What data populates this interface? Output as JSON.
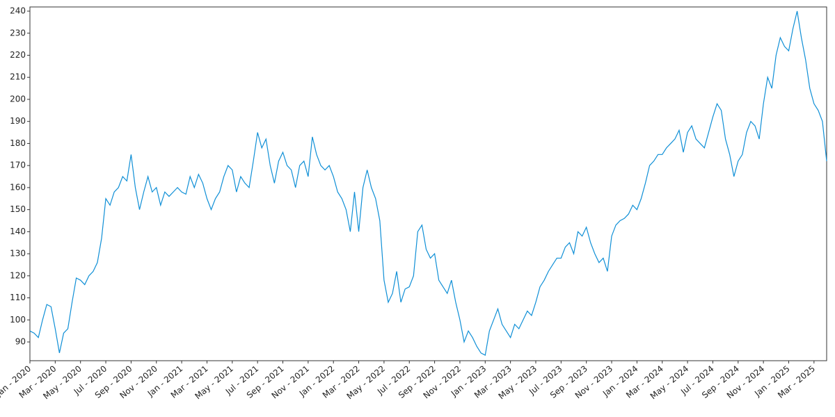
{
  "chart_data": {
    "type": "line",
    "series": [
      {
        "color": "#0f8fd6",
        "values": [
          95,
          94,
          92,
          100,
          107,
          106,
          96,
          85,
          94,
          96,
          108,
          119,
          118,
          116,
          120,
          122,
          126,
          137,
          155,
          152,
          158,
          160,
          165,
          163,
          175,
          160,
          150,
          158,
          165,
          158,
          160,
          152,
          158,
          156,
          158,
          160,
          158,
          157,
          165,
          160,
          166,
          162,
          155,
          150,
          155,
          158,
          165,
          170,
          168,
          158,
          165,
          162,
          160,
          172,
          185,
          178,
          182,
          170,
          162,
          172,
          176,
          170,
          168,
          160,
          170,
          172,
          165,
          183,
          175,
          170,
          168,
          170,
          165,
          158,
          155,
          150,
          140,
          158,
          140,
          160,
          168,
          160,
          155,
          145,
          118,
          108,
          112,
          122,
          108,
          114,
          115,
          120,
          140,
          143,
          132,
          128,
          130,
          118,
          115,
          112,
          118,
          108,
          100,
          90,
          95,
          92,
          88,
          85,
          84,
          95,
          100,
          105,
          98,
          95,
          92,
          98,
          96,
          100,
          104,
          102,
          108,
          115,
          118,
          122,
          125,
          128,
          128,
          133,
          135,
          130,
          140,
          138,
          142,
          135,
          130,
          126,
          128,
          122,
          138,
          143,
          145,
          146,
          148,
          152,
          150,
          155,
          162,
          170,
          172,
          175,
          175,
          178,
          180,
          182,
          186,
          176,
          185,
          188,
          182,
          180,
          178,
          185,
          192,
          198,
          195,
          182,
          175,
          165,
          172,
          175,
          185,
          190,
          188,
          182,
          198,
          210,
          205,
          220,
          228,
          224,
          222,
          232,
          240,
          228,
          218,
          205,
          198,
          195,
          190,
          172
        ]
      }
    ],
    "xlim": [
      0,
      189
    ],
    "xticks": [
      {
        "value": 0,
        "label": "Jan - 2020"
      },
      {
        "value": 6,
        "label": "Mar - 2020"
      },
      {
        "value": 12,
        "label": "May - 2020"
      },
      {
        "value": 18,
        "label": "Jul - 2020"
      },
      {
        "value": 24,
        "label": "Sep - 2020"
      },
      {
        "value": 30,
        "label": "Nov - 2020"
      },
      {
        "value": 36,
        "label": "Jan - 2021"
      },
      {
        "value": 42,
        "label": "Mar - 2021"
      },
      {
        "value": 48,
        "label": "May - 2021"
      },
      {
        "value": 54,
        "label": "Jul - 2021"
      },
      {
        "value": 60,
        "label": "Sep - 2021"
      },
      {
        "value": 66,
        "label": "Nov - 2021"
      },
      {
        "value": 72,
        "label": "Jan - 2022"
      },
      {
        "value": 78,
        "label": "Mar - 2022"
      },
      {
        "value": 84,
        "label": "May - 2022"
      },
      {
        "value": 90,
        "label": "Jul - 2022"
      },
      {
        "value": 96,
        "label": "Sep - 2022"
      },
      {
        "value": 102,
        "label": "Nov - 2022"
      },
      {
        "value": 108,
        "label": "Jan - 2023"
      },
      {
        "value": 114,
        "label": "Mar - 2023"
      },
      {
        "value": 120,
        "label": "May - 2023"
      },
      {
        "value": 126,
        "label": "Jul - 2023"
      },
      {
        "value": 132,
        "label": "Sep - 2023"
      },
      {
        "value": 138,
        "label": "Nov - 2023"
      },
      {
        "value": 144,
        "label": "Jan - 2024"
      },
      {
        "value": 150,
        "label": "Mar - 2024"
      },
      {
        "value": 156,
        "label": "May - 2024"
      },
      {
        "value": 162,
        "label": "Jul - 2024"
      },
      {
        "value": 168,
        "label": "Sep - 2024"
      },
      {
        "value": 174,
        "label": "Nov - 2024"
      },
      {
        "value": 180,
        "label": "Jan - 2025"
      },
      {
        "value": 186,
        "label": "Mar - 2025"
      }
    ],
    "ylim": [
      81.5,
      241.9
    ],
    "yticks": [
      90,
      100,
      110,
      120,
      130,
      140,
      150,
      160,
      170,
      180,
      190,
      200,
      210,
      220,
      230,
      240
    ],
    "grid": false
  }
}
